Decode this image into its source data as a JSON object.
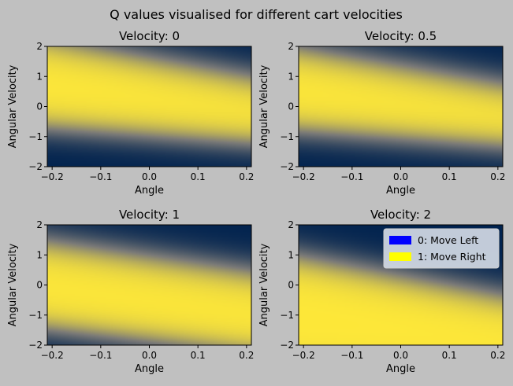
{
  "figure": {
    "suptitle": "Q values visualised for different cart velocities",
    "background": "#c0c0c0"
  },
  "colormap": {
    "low": "#00224e",
    "mid": "#7c7b78",
    "high": "#fee838"
  },
  "chart_data": [
    {
      "type": "heatmap",
      "title": "Velocity: 0",
      "xlabel": "Angle",
      "ylabel": "Angular Velocity",
      "xlim": [
        -0.21,
        0.21
      ],
      "ylim": [
        -2,
        2
      ],
      "xticks": [
        -0.2,
        -0.1,
        0.0,
        0.1,
        0.2
      ],
      "xtick_labels": [
        "−0.2",
        "−0.1",
        "0.0",
        "0.1",
        "0.2"
      ],
      "yticks": [
        -2,
        -1,
        0,
        1,
        2
      ],
      "ytick_labels": [
        "−2",
        "−1",
        "0",
        "1",
        "2"
      ],
      "boundary_upper": {
        "left": 2.3,
        "right": 1.05
      },
      "boundary_lower": {
        "left": -0.75,
        "right": -1.25
      },
      "decision": "action 1 (Move Right) between the boundaries, action 0 (Move Left) outside"
    },
    {
      "type": "heatmap",
      "title": "Velocity: 0.5",
      "xlabel": "Angle",
      "ylabel": "Angular Velocity",
      "xlim": [
        -0.21,
        0.21
      ],
      "ylim": [
        -2,
        2
      ],
      "xticks": [
        -0.2,
        -0.1,
        0.0,
        0.1,
        0.2
      ],
      "xtick_labels": [
        "−0.2",
        "−0.1",
        "0.0",
        "0.1",
        "0.2"
      ],
      "yticks": [
        -2,
        -1,
        0,
        1,
        2
      ],
      "ytick_labels": [
        "−2",
        "−1",
        "0",
        "1",
        "2"
      ],
      "boundary_upper": {
        "left": 2.0,
        "right": 0.8
      },
      "boundary_lower": {
        "left": -0.85,
        "right": -1.35
      },
      "decision": "action 1 (Move Right) between the boundaries, action 0 (Move Left) outside"
    },
    {
      "type": "heatmap",
      "title": "Velocity: 1",
      "xlabel": "Angle",
      "ylabel": "Angular Velocity",
      "xlim": [
        -0.21,
        0.21
      ],
      "ylim": [
        -2,
        2
      ],
      "xticks": [
        -0.2,
        -0.1,
        0.0,
        0.1,
        0.2
      ],
      "xtick_labels": [
        "−0.2",
        "−0.1",
        "0.0",
        "0.1",
        "0.2"
      ],
      "yticks": [
        -2,
        -1,
        0,
        1,
        2
      ],
      "ytick_labels": [
        "−2",
        "−1",
        "0",
        "1",
        "2"
      ],
      "boundary_upper": {
        "left": 1.5,
        "right": 0.5
      },
      "boundary_lower": {
        "left": -1.5,
        "right": -2.3
      },
      "decision": "action 1 (Move Right) between the boundaries, action 0 (Move Left) outside"
    },
    {
      "type": "heatmap",
      "title": "Velocity: 2",
      "xlabel": "Angle",
      "ylabel": "Angular Velocity",
      "xlim": [
        -0.21,
        0.21
      ],
      "ylim": [
        -2,
        2
      ],
      "xticks": [
        -0.2,
        -0.1,
        0.0,
        0.1,
        0.2
      ],
      "xtick_labels": [
        "−0.2",
        "−0.1",
        "0.0",
        "0.1",
        "0.2"
      ],
      "yticks": [
        -2,
        -1,
        0,
        1,
        2
      ],
      "ytick_labels": [
        "−2",
        "−1",
        "0",
        "1",
        "2"
      ],
      "boundary_upper": {
        "left": 1.0,
        "right": -0.3
      },
      "boundary_lower": {
        "left": -3.0,
        "right": -3.4
      },
      "decision": "action 1 (Move Right) between the boundaries, action 0 (Move Left) outside",
      "legend": {
        "placement": "upper right",
        "entries": [
          {
            "label": "0: Move Left",
            "color": "#0000ff"
          },
          {
            "label": "1: Move Right",
            "color": "#ffff00"
          }
        ]
      }
    }
  ]
}
